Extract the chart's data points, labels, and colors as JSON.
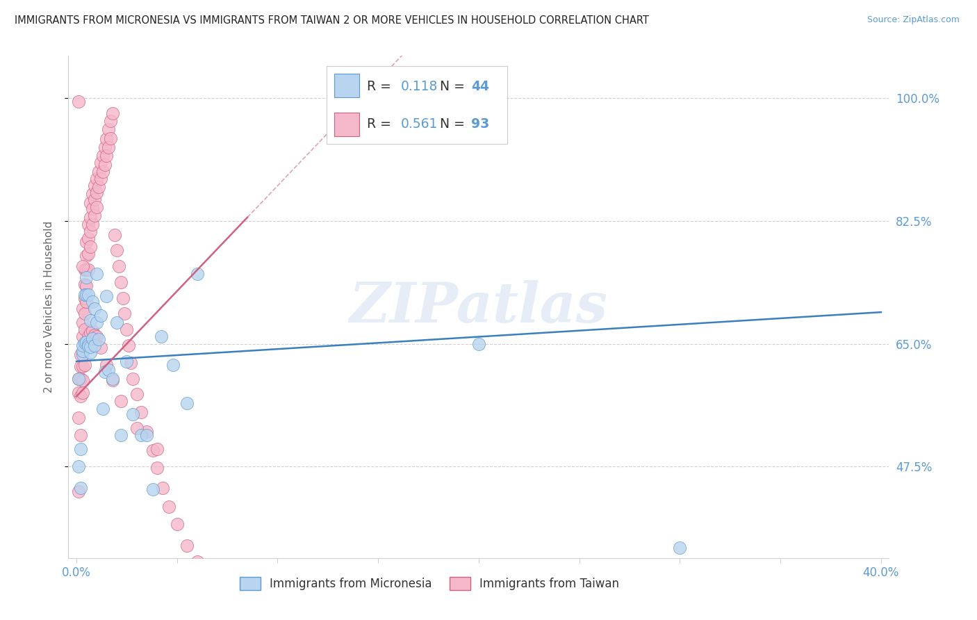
{
  "title": "IMMIGRANTS FROM MICRONESIA VS IMMIGRANTS FROM TAIWAN 2 OR MORE VEHICLES IN HOUSEHOLD CORRELATION CHART",
  "source": "Source: ZipAtlas.com",
  "ylabel": "2 or more Vehicles in Household",
  "xlim": [
    -0.004,
    0.404
  ],
  "ylim": [
    0.345,
    1.06
  ],
  "ytick_positions": [
    1.0,
    0.825,
    0.65,
    0.475
  ],
  "ytick_labels": [
    "100.0%",
    "82.5%",
    "65.0%",
    "47.5%"
  ],
  "xtick_positions": [
    0.0,
    0.05,
    0.1,
    0.15,
    0.2,
    0.25,
    0.3,
    0.35,
    0.4
  ],
  "xtick_labels": [
    "0.0%",
    "",
    "",
    "",
    "",
    "",
    "",
    "",
    "40.0%"
  ],
  "grid_color": "#d0d0d0",
  "bg_color": "#ffffff",
  "watermark": "ZIPatlas",
  "label_color": "#5b9bd5",
  "title_color": "#222222",
  "mic_scatter_color": "#b8d4ee",
  "mic_edge_color": "#5b9bd5",
  "mic_line_color": "#3a7fc1",
  "tai_scatter_color": "#f5b8cb",
  "tai_edge_color": "#d06080",
  "tai_line_color": "#d06080",
  "mic_label": "Immigrants from Micronesia",
  "tai_label": "Immigrants from Taiwan",
  "mic_R": "0.118",
  "mic_N": "44",
  "tai_R": "0.561",
  "tai_N": "93",
  "mic_x": [
    0.001,
    0.001,
    0.002,
    0.002,
    0.003,
    0.003,
    0.003,
    0.004,
    0.004,
    0.005,
    0.005,
    0.005,
    0.006,
    0.006,
    0.006,
    0.007,
    0.007,
    0.007,
    0.008,
    0.008,
    0.009,
    0.009,
    0.01,
    0.01,
    0.011,
    0.012,
    0.013,
    0.014,
    0.015,
    0.016,
    0.018,
    0.02,
    0.022,
    0.025,
    0.028,
    0.032,
    0.035,
    0.038,
    0.042,
    0.048,
    0.055,
    0.06,
    0.2,
    0.3
  ],
  "mic_y": [
    0.6,
    0.475,
    0.5,
    0.445,
    0.635,
    0.64,
    0.648,
    0.72,
    0.652,
    0.745,
    0.72,
    0.653,
    0.72,
    0.65,
    0.647,
    0.683,
    0.638,
    0.646,
    0.71,
    0.658,
    0.7,
    0.648,
    0.75,
    0.68,
    0.657,
    0.69,
    0.558,
    0.61,
    0.718,
    0.613,
    0.6,
    0.68,
    0.52,
    0.625,
    0.55,
    0.52,
    0.52,
    0.443,
    0.66,
    0.62,
    0.565,
    0.75,
    0.65,
    0.36
  ],
  "tai_x": [
    0.001,
    0.001,
    0.001,
    0.002,
    0.002,
    0.002,
    0.002,
    0.003,
    0.003,
    0.003,
    0.003,
    0.003,
    0.003,
    0.004,
    0.004,
    0.004,
    0.004,
    0.004,
    0.005,
    0.005,
    0.005,
    0.005,
    0.005,
    0.006,
    0.006,
    0.006,
    0.006,
    0.007,
    0.007,
    0.007,
    0.007,
    0.008,
    0.008,
    0.008,
    0.009,
    0.009,
    0.009,
    0.01,
    0.01,
    0.01,
    0.011,
    0.011,
    0.012,
    0.012,
    0.013,
    0.013,
    0.014,
    0.014,
    0.015,
    0.015,
    0.016,
    0.016,
    0.017,
    0.017,
    0.018,
    0.019,
    0.02,
    0.021,
    0.022,
    0.023,
    0.024,
    0.025,
    0.026,
    0.027,
    0.028,
    0.03,
    0.032,
    0.035,
    0.038,
    0.04,
    0.043,
    0.046,
    0.05,
    0.055,
    0.06,
    0.001,
    0.002,
    0.003,
    0.004,
    0.005,
    0.006,
    0.007,
    0.008,
    0.009,
    0.01,
    0.012,
    0.015,
    0.018,
    0.022,
    0.03,
    0.04,
    0.001,
    0.003
  ],
  "tai_y": [
    0.6,
    0.58,
    0.545,
    0.635,
    0.618,
    0.6,
    0.575,
    0.7,
    0.68,
    0.66,
    0.64,
    0.618,
    0.598,
    0.755,
    0.735,
    0.715,
    0.693,
    0.67,
    0.795,
    0.775,
    0.755,
    0.733,
    0.71,
    0.82,
    0.8,
    0.778,
    0.755,
    0.85,
    0.83,
    0.81,
    0.788,
    0.863,
    0.843,
    0.82,
    0.875,
    0.855,
    0.833,
    0.885,
    0.865,
    0.845,
    0.895,
    0.873,
    0.908,
    0.885,
    0.918,
    0.895,
    0.93,
    0.905,
    0.942,
    0.918,
    0.955,
    0.93,
    0.967,
    0.943,
    0.978,
    0.805,
    0.783,
    0.76,
    0.738,
    0.715,
    0.693,
    0.67,
    0.648,
    0.623,
    0.6,
    0.578,
    0.553,
    0.525,
    0.498,
    0.473,
    0.445,
    0.418,
    0.393,
    0.363,
    0.34,
    0.44,
    0.52,
    0.58,
    0.62,
    0.648,
    0.66,
    0.665,
    0.668,
    0.662,
    0.66,
    0.645,
    0.62,
    0.598,
    0.568,
    0.53,
    0.5,
    0.995,
    0.76
  ]
}
